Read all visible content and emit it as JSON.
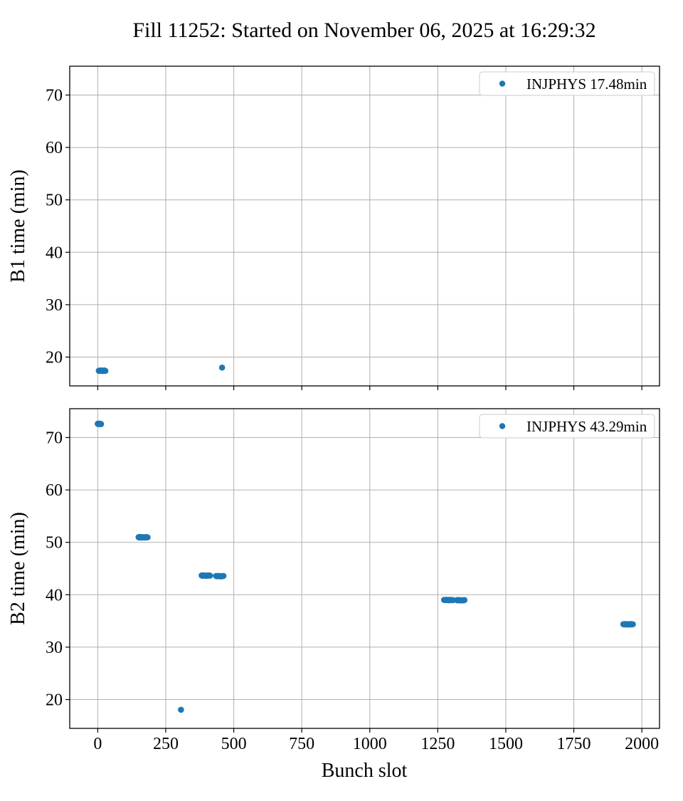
{
  "figure": {
    "title": "Fill 11252: Started on November 06, 2025 at 16:29:32",
    "xlabel": "Bunch slot"
  },
  "colors": {
    "marker": "#1f77b4",
    "grid": "#b0b0b0",
    "spine": "#000000",
    "legend_border": "#cccccc",
    "background": "#ffffff"
  },
  "chart_data": [
    {
      "type": "scatter",
      "name": "B1",
      "ylabel": "B1 time (min)",
      "legend": {
        "label": "INJPHYS 17.48min",
        "position": "upper right"
      },
      "xlim": [
        -103,
        2065
      ],
      "ylim": [
        14.5,
        75.5
      ],
      "xticks": [
        0,
        250,
        500,
        750,
        1000,
        1250,
        1500,
        1750,
        2000
      ],
      "yticks": [
        20,
        30,
        40,
        50,
        60,
        70
      ],
      "show_x_tick_labels": false,
      "grid": true,
      "points": [
        [
          4,
          17.4
        ],
        [
          6,
          17.36
        ],
        [
          8,
          17.43
        ],
        [
          10,
          17.39
        ],
        [
          12,
          17.44
        ],
        [
          14,
          17.37
        ],
        [
          16,
          17.41
        ],
        [
          18,
          17.35
        ],
        [
          20,
          17.42
        ],
        [
          22,
          17.38
        ],
        [
          24,
          17.45
        ],
        [
          26,
          17.4
        ],
        [
          28,
          17.37
        ],
        [
          457,
          18.0
        ]
      ]
    },
    {
      "type": "scatter",
      "name": "B2",
      "ylabel": "B2 time (min)",
      "legend": {
        "label": "INJPHYS 43.29min",
        "position": "upper right"
      },
      "xlim": [
        -103,
        2065
      ],
      "ylim": [
        14.5,
        75.5
      ],
      "xticks": [
        0,
        250,
        500,
        750,
        1000,
        1250,
        1500,
        1750,
        2000
      ],
      "yticks": [
        20,
        30,
        40,
        50,
        60,
        70
      ],
      "show_x_tick_labels": true,
      "grid": true,
      "points": [
        [
          0,
          72.62
        ],
        [
          2,
          72.58
        ],
        [
          3,
          72.65
        ],
        [
          5,
          72.6
        ],
        [
          6,
          72.55
        ],
        [
          8,
          72.63
        ],
        [
          9,
          72.59
        ],
        [
          11,
          72.61
        ],
        [
          12,
          72.57
        ],
        [
          150,
          50.98
        ],
        [
          153,
          50.92
        ],
        [
          156,
          51.04
        ],
        [
          159,
          50.96
        ],
        [
          162,
          50.9
        ],
        [
          166,
          51.0
        ],
        [
          169,
          50.94
        ],
        [
          172,
          50.97
        ],
        [
          175,
          50.91
        ],
        [
          179,
          51.02
        ],
        [
          183,
          50.95
        ],
        [
          382,
          43.68
        ],
        [
          386,
          43.62
        ],
        [
          390,
          43.7
        ],
        [
          394,
          43.65
        ],
        [
          398,
          43.6
        ],
        [
          402,
          43.67
        ],
        [
          406,
          43.63
        ],
        [
          410,
          43.69
        ],
        [
          413,
          43.64
        ],
        [
          435,
          43.58
        ],
        [
          439,
          43.52
        ],
        [
          443,
          43.6
        ],
        [
          447,
          43.55
        ],
        [
          451,
          43.5
        ],
        [
          455,
          43.57
        ],
        [
          458,
          43.53
        ],
        [
          462,
          43.59
        ],
        [
          306,
          18.05
        ],
        [
          1273,
          39.02
        ],
        [
          1277,
          38.97
        ],
        [
          1281,
          39.05
        ],
        [
          1285,
          39.0
        ],
        [
          1289,
          38.95
        ],
        [
          1293,
          39.03
        ],
        [
          1297,
          38.98
        ],
        [
          1301,
          39.01
        ],
        [
          1305,
          38.96
        ],
        [
          1320,
          38.98
        ],
        [
          1324,
          38.93
        ],
        [
          1328,
          39.0
        ],
        [
          1332,
          38.95
        ],
        [
          1336,
          38.91
        ],
        [
          1340,
          38.97
        ],
        [
          1344,
          38.92
        ],
        [
          1348,
          38.99
        ],
        [
          1932,
          34.38
        ],
        [
          1936,
          34.32
        ],
        [
          1940,
          34.42
        ],
        [
          1944,
          34.36
        ],
        [
          1948,
          34.3
        ],
        [
          1952,
          34.39
        ],
        [
          1956,
          34.33
        ],
        [
          1960,
          34.41
        ],
        [
          1963,
          34.35
        ],
        [
          1967,
          34.37
        ]
      ]
    }
  ]
}
